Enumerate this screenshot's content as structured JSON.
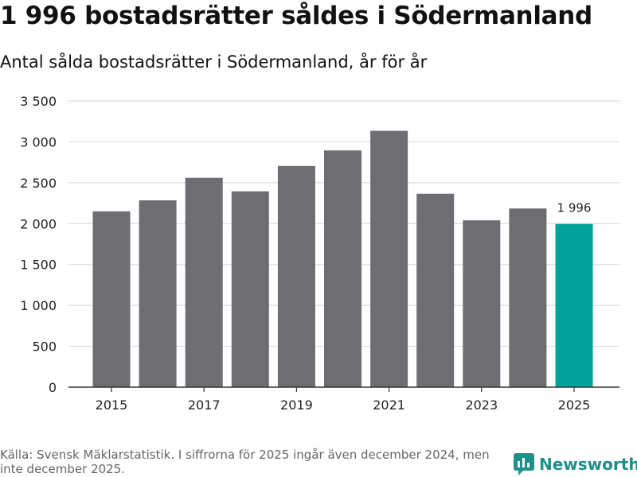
{
  "title": "1 996 bostadsrätter såldes i Södermanland",
  "subtitle": "Antal sålda bostadsrätter i Södermanland, år för år",
  "source": "Källa: Svensk Mäklarstatistik. I siffrorna för 2025 ingår även december 2024, men inte december 2025.",
  "brand": {
    "name": "Newsworthy",
    "color": "#1f8f8a"
  },
  "colors": {
    "bar": "#6e6d72",
    "highlight": "#00a39b",
    "grid": "#dcdcdc",
    "axis": "#333333"
  },
  "chart_data": {
    "type": "bar",
    "title": "1 996 bostadsrätter såldes i Södermanland",
    "subtitle": "Antal sålda bostadsrätter i Södermanland, år för år",
    "xlabel": "",
    "ylabel": "",
    "categories": [
      "2015",
      "2016",
      "2017",
      "2018",
      "2019",
      "2020",
      "2021",
      "2022",
      "2023",
      "2024",
      "2025"
    ],
    "values": [
      2150,
      2285,
      2560,
      2395,
      2705,
      2895,
      3135,
      2365,
      2040,
      2185,
      1996
    ],
    "x_tick_labels": [
      "2015",
      "2017",
      "2019",
      "2021",
      "2023",
      "2025"
    ],
    "y_ticks": [
      0,
      500,
      1000,
      1500,
      2000,
      2500,
      3000,
      3500
    ],
    "y_tick_labels": [
      "0",
      "500",
      "1 000",
      "1 500",
      "2 000",
      "2 500",
      "3 000",
      "3 500"
    ],
    "ylim": [
      0,
      3500
    ],
    "highlight_index": 10,
    "highlight_label": "1 996",
    "grid": true
  }
}
